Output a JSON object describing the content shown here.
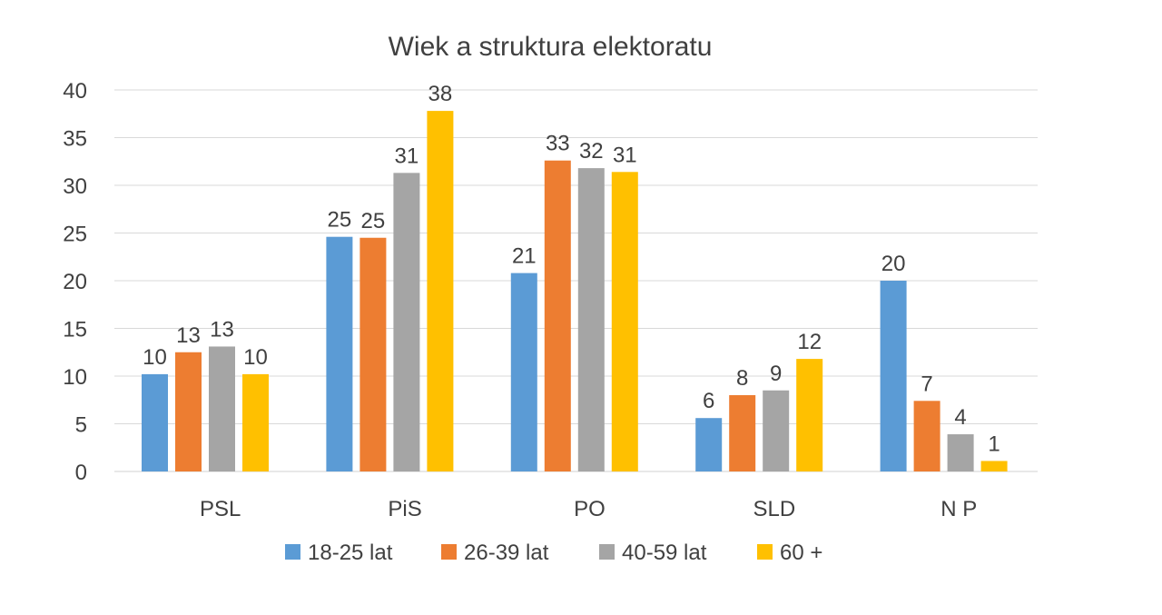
{
  "chart_data": {
    "type": "bar",
    "title": "Wiek a struktura elektoratu",
    "xlabel": "",
    "ylabel": "",
    "categories": [
      "PSL",
      "PiS",
      "PO",
      "SLD",
      "N P"
    ],
    "series": [
      {
        "name": "18-25 lat",
        "color": "#5B9BD5",
        "values": [
          10.2,
          24.6,
          20.8,
          5.6,
          20
        ],
        "labels": [
          "10",
          "25",
          "21",
          "6",
          "20"
        ]
      },
      {
        "name": "26-39 lat",
        "color": "#ED7D31",
        "values": [
          12.5,
          24.5,
          32.6,
          8,
          7.4
        ],
        "labels": [
          "13",
          "25",
          "33",
          "8",
          "7"
        ]
      },
      {
        "name": "40-59 lat",
        "color": "#A5A5A5",
        "values": [
          13.1,
          31.3,
          31.8,
          8.5,
          3.9
        ],
        "labels": [
          "13",
          "31",
          "32",
          "9",
          "4"
        ]
      },
      {
        "name": "60 +",
        "color": "#FFC000",
        "values": [
          10.2,
          37.8,
          31.4,
          11.8,
          1.1
        ],
        "labels": [
          "10",
          "38",
          "31",
          "12",
          "1"
        ]
      }
    ],
    "ylim": [
      0,
      40
    ],
    "yticks": [
      0,
      5,
      10,
      15,
      20,
      25,
      30,
      35,
      40
    ],
    "grid": true,
    "legend": "bottom-center"
  }
}
